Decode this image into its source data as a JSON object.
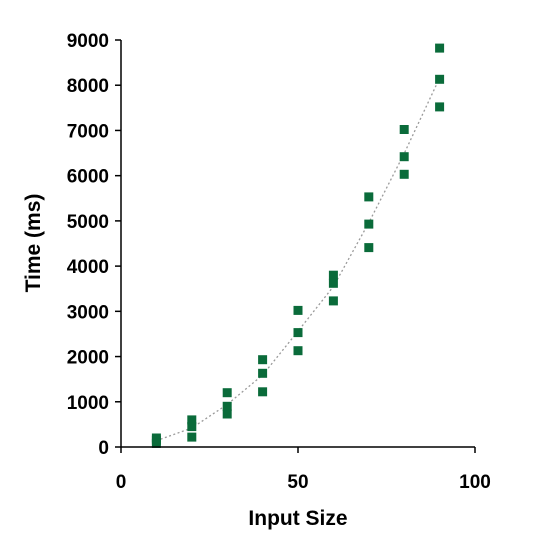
{
  "chart_data": {
    "type": "scatter",
    "xlabel": "Input Size",
    "ylabel": "Time (ms)",
    "xlim": [
      0,
      100
    ],
    "ylim": [
      0,
      9000
    ],
    "xticks": [
      0,
      50,
      100
    ],
    "yticks": [
      0,
      1000,
      2000,
      3000,
      4000,
      5000,
      6000,
      7000,
      8000,
      9000
    ],
    "grid": false,
    "legend": "none",
    "marker_color": "#0a6b3a",
    "trendline_color": "#9a9a9a",
    "series": [
      {
        "points": [
          {
            "x": 10,
            "y": 200
          },
          {
            "x": 10,
            "y": 150
          },
          {
            "x": 10,
            "y": 80
          },
          {
            "x": 20,
            "y": 600
          },
          {
            "x": 20,
            "y": 450
          },
          {
            "x": 20,
            "y": 220
          },
          {
            "x": 30,
            "y": 1200
          },
          {
            "x": 30,
            "y": 900
          },
          {
            "x": 30,
            "y": 730
          },
          {
            "x": 40,
            "y": 1930
          },
          {
            "x": 40,
            "y": 1630
          },
          {
            "x": 40,
            "y": 1220
          },
          {
            "x": 50,
            "y": 3020
          },
          {
            "x": 50,
            "y": 2530
          },
          {
            "x": 50,
            "y": 2130
          },
          {
            "x": 60,
            "y": 3800
          },
          {
            "x": 60,
            "y": 3620
          },
          {
            "x": 60,
            "y": 3230
          },
          {
            "x": 70,
            "y": 5530
          },
          {
            "x": 70,
            "y": 4930
          },
          {
            "x": 70,
            "y": 4410
          },
          {
            "x": 80,
            "y": 7020
          },
          {
            "x": 80,
            "y": 6420
          },
          {
            "x": 80,
            "y": 6030
          },
          {
            "x": 90,
            "y": 8820
          },
          {
            "x": 90,
            "y": 8130
          },
          {
            "x": 90,
            "y": 7520
          }
        ]
      }
    ],
    "trendline": {
      "x": [
        10,
        20,
        30,
        40,
        50,
        60,
        70,
        80,
        90
      ],
      "y": [
        140,
        420,
        940,
        1590,
        2560,
        3550,
        4960,
        6490,
        8160
      ]
    }
  }
}
